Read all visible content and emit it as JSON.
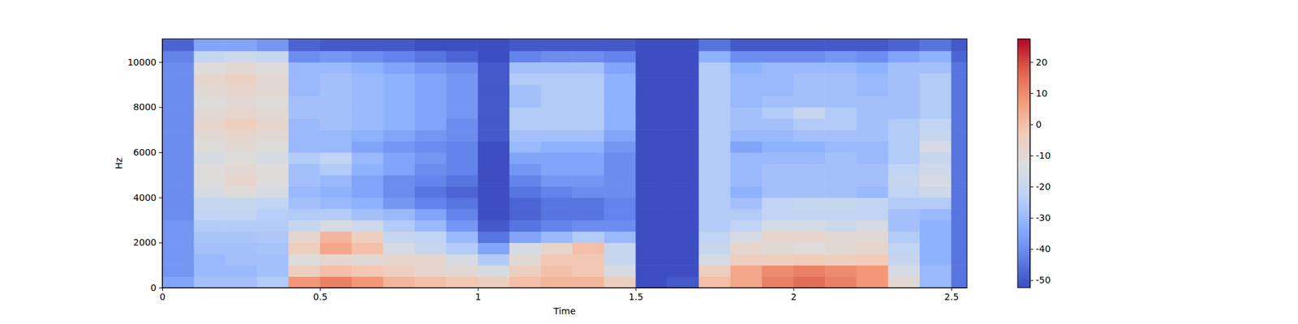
{
  "chart_data": {
    "type": "heatmap",
    "x_label": "Time",
    "y_label": "Hz",
    "xlim": [
      0,
      2.55
    ],
    "ylim": [
      0,
      11025
    ],
    "xticks": [
      0,
      0.5,
      1,
      1.5,
      2,
      2.5
    ],
    "yticks": [
      0,
      2000,
      4000,
      6000,
      8000,
      10000
    ],
    "x_edges": [
      0,
      0.1,
      0.2,
      0.3,
      0.4,
      0.5,
      0.6,
      0.7,
      0.8,
      0.9,
      1.0,
      1.1,
      1.2,
      1.3,
      1.4,
      1.5,
      1.6,
      1.7,
      1.8,
      1.9,
      2.0,
      2.1,
      2.2,
      2.3,
      2.4,
      2.5,
      2.55
    ],
    "y_edges": [
      0,
      500,
      1000,
      1500,
      2000,
      2500,
      3000,
      3500,
      4000,
      4500,
      5000,
      5500,
      6000,
      6500,
      7000,
      7500,
      8000,
      8500,
      9000,
      9500,
      10000,
      10500,
      11025
    ],
    "values": [
      [
        -35,
        -28,
        -28,
        -25,
        8,
        12,
        8,
        2,
        0,
        -2,
        -5,
        0,
        2,
        2,
        -5,
        -52,
        -50,
        0,
        5,
        12,
        15,
        12,
        8,
        -10,
        -30,
        -45
      ],
      [
        -38,
        -30,
        -30,
        -28,
        -5,
        0,
        -2,
        -5,
        -8,
        -10,
        -15,
        -5,
        0,
        -2,
        -15,
        -52,
        -52,
        -5,
        5,
        10,
        12,
        10,
        8,
        -15,
        -30,
        -45
      ],
      [
        -38,
        -30,
        -28,
        -28,
        -12,
        -8,
        -10,
        -8,
        -8,
        -15,
        -25,
        -10,
        -2,
        -2,
        -20,
        -52,
        -52,
        -15,
        -5,
        -5,
        -3,
        -5,
        -3,
        -20,
        -32,
        -45
      ],
      [
        -38,
        -28,
        -28,
        -27,
        -5,
        5,
        0,
        -15,
        -20,
        -25,
        -35,
        -15,
        -8,
        0,
        -20,
        -52,
        -52,
        -20,
        -8,
        -10,
        -12,
        -10,
        -8,
        -22,
        -32,
        -45
      ],
      [
        -38,
        -27,
        -27,
        -26,
        -8,
        2,
        -5,
        -20,
        -22,
        -30,
        -45,
        -35,
        -30,
        -25,
        -30,
        -52,
        -52,
        -22,
        -15,
        -8,
        -8,
        -10,
        -10,
        -25,
        -32,
        -45
      ],
      [
        -38,
        -25,
        -25,
        -25,
        -20,
        -15,
        -18,
        -25,
        -30,
        -38,
        -50,
        -45,
        -42,
        -40,
        -40,
        -52,
        -52,
        -25,
        -22,
        -15,
        -15,
        -18,
        -15,
        -28,
        -32,
        -45
      ],
      [
        -40,
        -22,
        -22,
        -24,
        -25,
        -25,
        -28,
        -30,
        -35,
        -42,
        -52,
        -48,
        -45,
        -45,
        -42,
        -52,
        -52,
        -25,
        -25,
        -22,
        -22,
        -22,
        -22,
        -28,
        -30,
        -45
      ],
      [
        -40,
        -20,
        -20,
        -22,
        -28,
        -30,
        -32,
        -38,
        -42,
        -45,
        -52,
        -48,
        -45,
        -45,
        -42,
        -52,
        -52,
        -25,
        -28,
        -22,
        -20,
        -20,
        -22,
        -25,
        -25,
        -45
      ],
      [
        -40,
        -15,
        -12,
        -15,
        -30,
        -32,
        -35,
        -40,
        -45,
        -48,
        -52,
        -45,
        -42,
        -40,
        -40,
        -52,
        -52,
        -25,
        -32,
        -28,
        -28,
        -28,
        -30,
        -22,
        -18,
        -45
      ],
      [
        -40,
        -12,
        -8,
        -12,
        -28,
        -30,
        -35,
        -40,
        -42,
        -45,
        -52,
        -42,
        -38,
        -38,
        -40,
        -52,
        -52,
        -25,
        -30,
        -28,
        -28,
        -28,
        -28,
        -20,
        -15,
        -45
      ],
      [
        -40,
        -12,
        -10,
        -12,
        -28,
        -25,
        -32,
        -35,
        -40,
        -42,
        -52,
        -38,
        -35,
        -35,
        -40,
        -52,
        -52,
        -25,
        -30,
        -28,
        -28,
        -28,
        -28,
        -22,
        -18,
        -45
      ],
      [
        -40,
        -15,
        -12,
        -15,
        -25,
        -22,
        -30,
        -35,
        -38,
        -42,
        -52,
        -35,
        -35,
        -35,
        -40,
        -52,
        -52,
        -25,
        -30,
        -30,
        -30,
        -28,
        -30,
        -25,
        -20,
        -45
      ],
      [
        -40,
        -12,
        -10,
        -12,
        -30,
        -30,
        -35,
        -38,
        -40,
        -42,
        -52,
        -30,
        -32,
        -32,
        -38,
        -52,
        -52,
        -25,
        -35,
        -32,
        -32,
        -30,
        -30,
        -25,
        -15,
        -45
      ],
      [
        -40,
        -10,
        -8,
        -10,
        -30,
        -30,
        -32,
        -35,
        -38,
        -40,
        -50,
        -28,
        -28,
        -28,
        -35,
        -52,
        -52,
        -25,
        -30,
        -30,
        -28,
        -28,
        -28,
        -25,
        -20,
        -45
      ],
      [
        -40,
        -8,
        -5,
        -8,
        -30,
        -28,
        -30,
        -32,
        -35,
        -40,
        -50,
        -25,
        -25,
        -25,
        -32,
        -52,
        -52,
        -25,
        -28,
        -28,
        -25,
        -25,
        -28,
        -25,
        -22,
        -45
      ],
      [
        -40,
        -10,
        -8,
        -10,
        -28,
        -28,
        -30,
        -32,
        -35,
        -38,
        -50,
        -25,
        -25,
        -25,
        -32,
        -52,
        -52,
        -25,
        -28,
        -25,
        -20,
        -25,
        -28,
        -28,
        -25,
        -45
      ],
      [
        -40,
        -12,
        -10,
        -12,
        -28,
        -28,
        -30,
        -32,
        -35,
        -38,
        -50,
        -28,
        -25,
        -25,
        -32,
        -52,
        -52,
        -25,
        -30,
        -28,
        -28,
        -28,
        -28,
        -28,
        -25,
        -45
      ],
      [
        -40,
        -10,
        -8,
        -10,
        -30,
        -28,
        -30,
        -32,
        -35,
        -38,
        -50,
        -28,
        -25,
        -25,
        -32,
        -52,
        -52,
        -25,
        -30,
        -30,
        -28,
        -28,
        -30,
        -28,
        -25,
        -45
      ],
      [
        -40,
        -8,
        -6,
        -10,
        -30,
        -28,
        -30,
        -32,
        -35,
        -38,
        -50,
        -25,
        -25,
        -25,
        -32,
        -52,
        -52,
        -25,
        -30,
        -30,
        -28,
        -28,
        -30,
        -28,
        -25,
        -45
      ],
      [
        -40,
        -12,
        -10,
        -12,
        -30,
        -30,
        -32,
        -35,
        -38,
        -40,
        -50,
        -28,
        -28,
        -28,
        -35,
        -52,
        -52,
        -25,
        -32,
        -30,
        -30,
        -30,
        -32,
        -28,
        -28,
        -45
      ],
      [
        -42,
        -20,
        -18,
        -20,
        -40,
        -38,
        -40,
        -42,
        -45,
        -48,
        -52,
        -42,
        -40,
        -40,
        -42,
        -52,
        -52,
        -32,
        -40,
        -40,
        -40,
        -38,
        -40,
        -35,
        -32,
        -48
      ],
      [
        -48,
        -35,
        -35,
        -38,
        -48,
        -50,
        -50,
        -50,
        -52,
        -52,
        -52,
        -50,
        -50,
        -50,
        -50,
        -52,
        -52,
        -45,
        -50,
        -50,
        -50,
        -50,
        -50,
        -48,
        -45,
        -50
      ]
    ],
    "colorbar": {
      "range": [
        -52.4,
        27.4
      ],
      "ticks": [
        20,
        10,
        0,
        -10,
        -20,
        -30,
        -40,
        -50
      ]
    }
  }
}
